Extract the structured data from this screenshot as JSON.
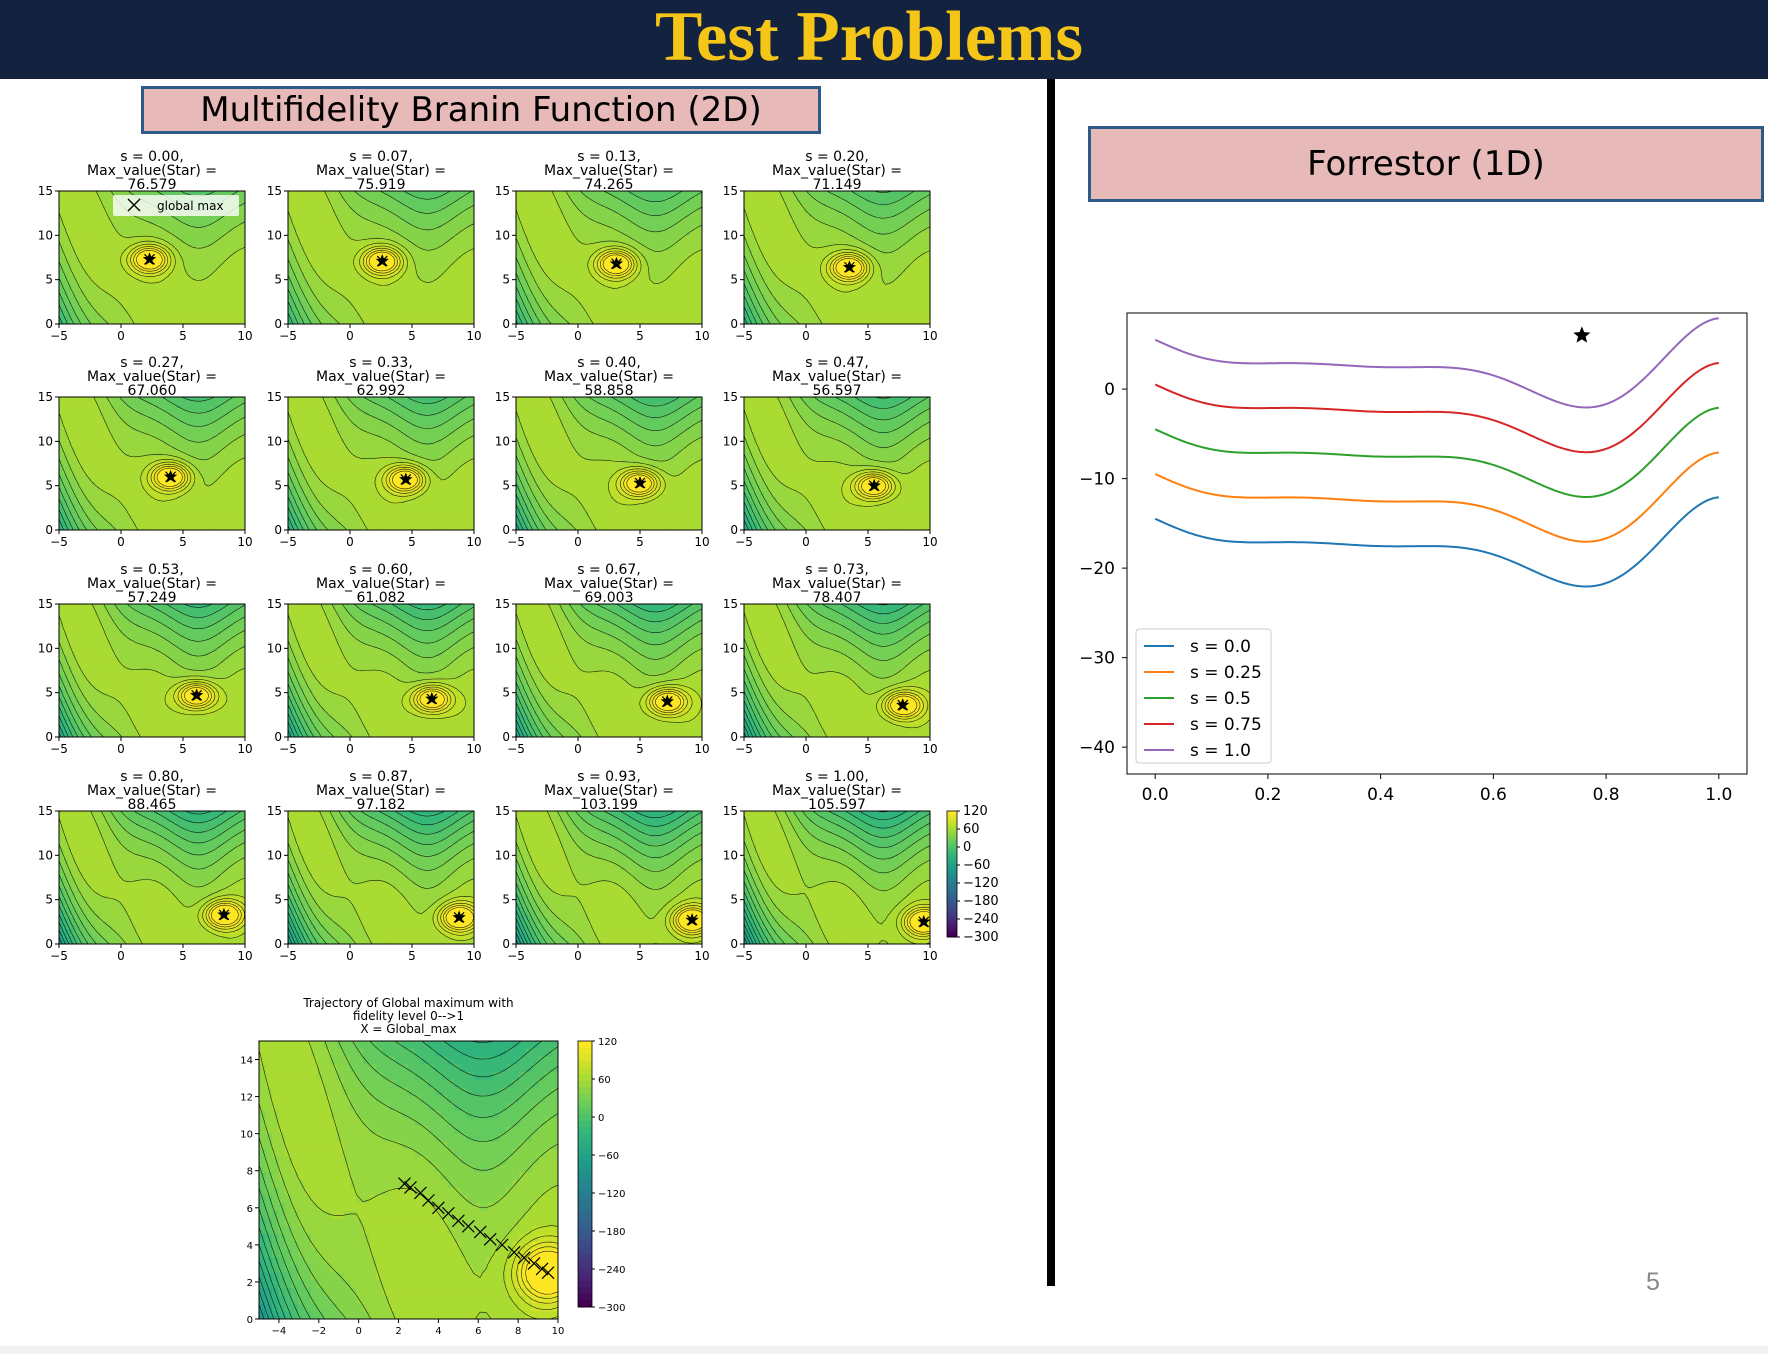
{
  "slide": {
    "title": "Test Problems",
    "left_section_title": "Multifidelity Branin Function (2D)",
    "right_section_title": "Forrestor (1D)",
    "page_number": "5"
  },
  "colors": {
    "header_bg": "#13233f",
    "title_text": "#f5c518",
    "section_box_fill": "#e8b9b9",
    "section_box_border": "#2e5a87"
  },
  "chart_data": [
    {
      "type": "heatmap",
      "description_type": "contour grid (4x4 subplots)",
      "legend": [
        "global max"
      ],
      "x_ticks": [
        "−5",
        "0",
        "5",
        "10"
      ],
      "y_ticks": [
        "0",
        "5",
        "10",
        "15"
      ],
      "xlim": [
        -5,
        10
      ],
      "ylim": [
        0,
        15
      ],
      "colorbar": {
        "ticks": [
          "120",
          "60",
          "0",
          "−60",
          "−120",
          "−180",
          "−240",
          "−300"
        ],
        "range": [
          -300,
          120
        ],
        "colormap": "viridis"
      },
      "panels": [
        {
          "s": "0.00",
          "max_value": "76.579",
          "title_line1": "s = 0.00,",
          "title_line2": "Max_value(Star) =",
          "title_line3": "76.579",
          "star": [
            2.3,
            7.3
          ]
        },
        {
          "s": "0.07",
          "max_value": "75.919",
          "title_line1": "s = 0.07,",
          "title_line2": "Max_value(Star) =",
          "title_line3": "75.919",
          "star": [
            2.6,
            7.1
          ]
        },
        {
          "s": "0.13",
          "max_value": "74.265",
          "title_line1": "s = 0.13,",
          "title_line2": "Max_value(Star) =",
          "title_line3": "74.265",
          "star": [
            3.1,
            6.8
          ]
        },
        {
          "s": "0.20",
          "max_value": "71.149",
          "title_line1": "s = 0.20,",
          "title_line2": "Max_value(Star) =",
          "title_line3": "71.149",
          "star": [
            3.5,
            6.4
          ]
        },
        {
          "s": "0.27",
          "max_value": "67.060",
          "title_line1": "s = 0.27,",
          "title_line2": "Max_value(Star) =",
          "title_line3": "67.060",
          "star": [
            4.0,
            6.0
          ]
        },
        {
          "s": "0.33",
          "max_value": "62.992",
          "title_line1": "s = 0.33,",
          "title_line2": "Max_value(Star) =",
          "title_line3": "62.992",
          "star": [
            4.5,
            5.7
          ]
        },
        {
          "s": "0.40",
          "max_value": "58.858",
          "title_line1": "s = 0.40,",
          "title_line2": "Max_value(Star) =",
          "title_line3": "58.858",
          "star": [
            5.0,
            5.3
          ]
        },
        {
          "s": "0.47",
          "max_value": "56.597",
          "title_line1": "s = 0.47,",
          "title_line2": "Max_value(Star) =",
          "title_line3": "56.597",
          "star": [
            5.5,
            5.0
          ]
        },
        {
          "s": "0.53",
          "max_value": "57.249",
          "title_line1": "s = 0.53,",
          "title_line2": "Max_value(Star) =",
          "title_line3": "57.249",
          "star": [
            6.1,
            4.7
          ]
        },
        {
          "s": "0.60",
          "max_value": "61.082",
          "title_line1": "s = 0.60,",
          "title_line2": "Max_value(Star) =",
          "title_line3": "61.082",
          "star": [
            6.6,
            4.3
          ]
        },
        {
          "s": "0.67",
          "max_value": "69.003",
          "title_line1": "s = 0.67,",
          "title_line2": "Max_value(Star) =",
          "title_line3": "69.003",
          "star": [
            7.2,
            4.0
          ]
        },
        {
          "s": "0.73",
          "max_value": "78.407",
          "title_line1": "s = 0.73,",
          "title_line2": "Max_value(Star) =",
          "title_line3": "78.407",
          "star": [
            7.8,
            3.6
          ]
        },
        {
          "s": "0.80",
          "max_value": "88.465",
          "title_line1": "s = 0.80,",
          "title_line2": "Max_value(Star) =",
          "title_line3": "88.465",
          "star": [
            8.3,
            3.3
          ]
        },
        {
          "s": "0.87",
          "max_value": "97.182",
          "title_line1": "s = 0.87,",
          "title_line2": "Max_value(Star) =",
          "title_line3": "97.182",
          "star": [
            8.8,
            3.0
          ]
        },
        {
          "s": "0.93",
          "max_value": "103.199",
          "title_line1": "s = 0.93,",
          "title_line2": "Max_value(Star) =",
          "title_line3": "103.199",
          "star": [
            9.2,
            2.7
          ]
        },
        {
          "s": "1.00",
          "max_value": "105.597",
          "title_line1": "s = 1.00,",
          "title_line2": "Max_value(Star) =",
          "title_line3": "105.597",
          "star": [
            9.5,
            2.5
          ]
        }
      ]
    },
    {
      "type": "heatmap",
      "description_type": "contour with trajectory",
      "title_lines": [
        "Trajectory of Global maximum with",
        "fidelity level 0-->1",
        "X = Global_max"
      ],
      "x_ticks": [
        "−4",
        "−2",
        "0",
        "2",
        "4",
        "6",
        "8",
        "10"
      ],
      "y_ticks": [
        "0",
        "2",
        "4",
        "6",
        "8",
        "10",
        "12",
        "14"
      ],
      "xlim": [
        -5,
        10
      ],
      "ylim": [
        0,
        15
      ],
      "colorbar": {
        "ticks": [
          "120",
          "60",
          "0",
          "−60",
          "−120",
          "−180",
          "−240",
          "−300"
        ],
        "range": [
          -300,
          120
        ]
      },
      "trajectory": [
        [
          2.3,
          7.3
        ],
        [
          2.6,
          7.1
        ],
        [
          3.1,
          6.8
        ],
        [
          3.5,
          6.4
        ],
        [
          4.0,
          6.0
        ],
        [
          4.5,
          5.7
        ],
        [
          5.0,
          5.3
        ],
        [
          5.5,
          5.0
        ],
        [
          6.1,
          4.7
        ],
        [
          6.6,
          4.3
        ],
        [
          7.2,
          4.0
        ],
        [
          7.8,
          3.6
        ],
        [
          8.3,
          3.3
        ],
        [
          8.8,
          3.0
        ],
        [
          9.2,
          2.7
        ],
        [
          9.5,
          2.5
        ]
      ]
    },
    {
      "type": "line",
      "x_ticks": [
        "0.0",
        "0.2",
        "0.4",
        "0.6",
        "0.8",
        "1.0"
      ],
      "y_ticks": [
        "0",
        "−10",
        "−20",
        "−30",
        "−40"
      ],
      "xlim": [
        -0.05,
        1.05
      ],
      "ylim": [
        -43,
        8.5
      ],
      "legend_placement": "lower-left",
      "series": [
        {
          "name": "s = 0.0",
          "color": "#1f77b4",
          "offset": -20
        },
        {
          "name": "s = 0.25",
          "color": "#ff7f0e",
          "offset": -15
        },
        {
          "name": "s = 0.5",
          "color": "#2ca02c",
          "offset": -10
        },
        {
          "name": "s = 0.75",
          "color": "#d62728",
          "offset": -5
        },
        {
          "name": "s = 1.0",
          "color": "#9467bd",
          "offset": 0
        }
      ],
      "max_marker": {
        "x": 0.757,
        "y": 6.0
      }
    }
  ]
}
